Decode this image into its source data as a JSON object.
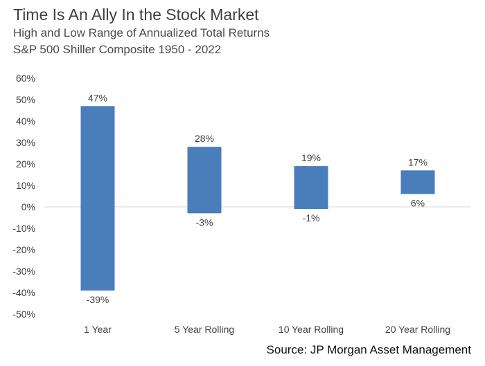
{
  "header": {
    "title": "Time Is An Ally In the Stock Market",
    "subtitle_line1": "High and Low Range of Annualized Total Returns",
    "subtitle_line2": "S&P 500 Shiller Composite 1950 - 2022"
  },
  "footer": {
    "source": "Source: JP Morgan Asset Management"
  },
  "chart_data": {
    "type": "bar",
    "title": "Time Is An Ally In the Stock Market",
    "subtitle": "High and Low Range of Annualized Total Returns S&P 500 Shiller Composite 1950 - 2022",
    "categories": [
      "1 Year",
      "5 Year Rolling",
      "10 Year Rolling",
      "20 Year Rolling"
    ],
    "high": [
      47,
      28,
      19,
      17
    ],
    "low": [
      -39,
      -3,
      -1,
      6
    ],
    "high_labels": [
      "47%",
      "28%",
      "19%",
      "17%"
    ],
    "low_labels": [
      "-39%",
      "-3%",
      "-1%",
      "6%"
    ],
    "y_ticks": [
      60,
      50,
      40,
      30,
      20,
      10,
      0,
      -10,
      -20,
      -30,
      -40,
      -50
    ],
    "y_tick_labels": [
      "60%",
      "50%",
      "40%",
      "30%",
      "20%",
      "10%",
      "0%",
      "-10%",
      "-20%",
      "-30%",
      "-40%",
      "-50%"
    ],
    "ylim": [
      -50,
      60
    ],
    "xlabel": "",
    "ylabel": "",
    "grid": false,
    "legend": "none",
    "colors": {
      "bar": "#4a7ebb",
      "axis": "#d9d9d9",
      "text": "#404040"
    }
  }
}
